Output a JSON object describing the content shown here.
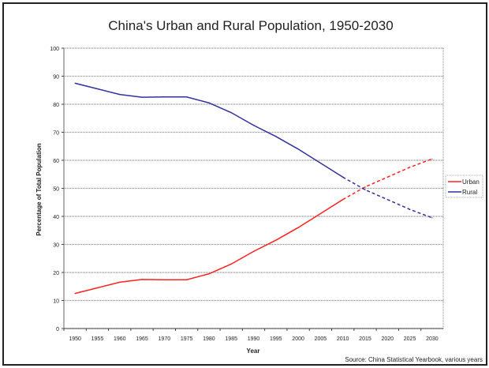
{
  "chart_data": {
    "type": "line",
    "title": "China's Urban and Rural Population, 1950-2030",
    "xlabel": "Year",
    "ylabel": "Percentage of Total Population",
    "ylim": [
      0,
      100
    ],
    "yticks": [
      0,
      10,
      20,
      30,
      40,
      50,
      60,
      70,
      80,
      90,
      100
    ],
    "categories": [
      "1950",
      "1955",
      "1960",
      "1965",
      "1970",
      "1975",
      "1980",
      "1985",
      "1990",
      "1995",
      "2000",
      "2005",
      "2010",
      "2015",
      "2020",
      "2025",
      "2030"
    ],
    "projection_starts_at": "2010",
    "grid": true,
    "legend_position": "right",
    "series": [
      {
        "name": "Urban",
        "color": "#ff2020",
        "values": [
          12.5,
          14.5,
          16.5,
          17.5,
          17.4,
          17.4,
          19.5,
          23,
          27.5,
          31.5,
          36,
          41,
          46,
          50.5,
          54,
          57.5,
          60.5
        ]
      },
      {
        "name": "Rural",
        "color": "#3030a0",
        "values": [
          87.5,
          85.5,
          83.5,
          82.5,
          82.6,
          82.6,
          80.5,
          77,
          72.5,
          68.5,
          64,
          59,
          54,
          49.5,
          46,
          42.5,
          39.5
        ]
      }
    ],
    "source": "Source: China Statistical Yearbook, various years"
  }
}
